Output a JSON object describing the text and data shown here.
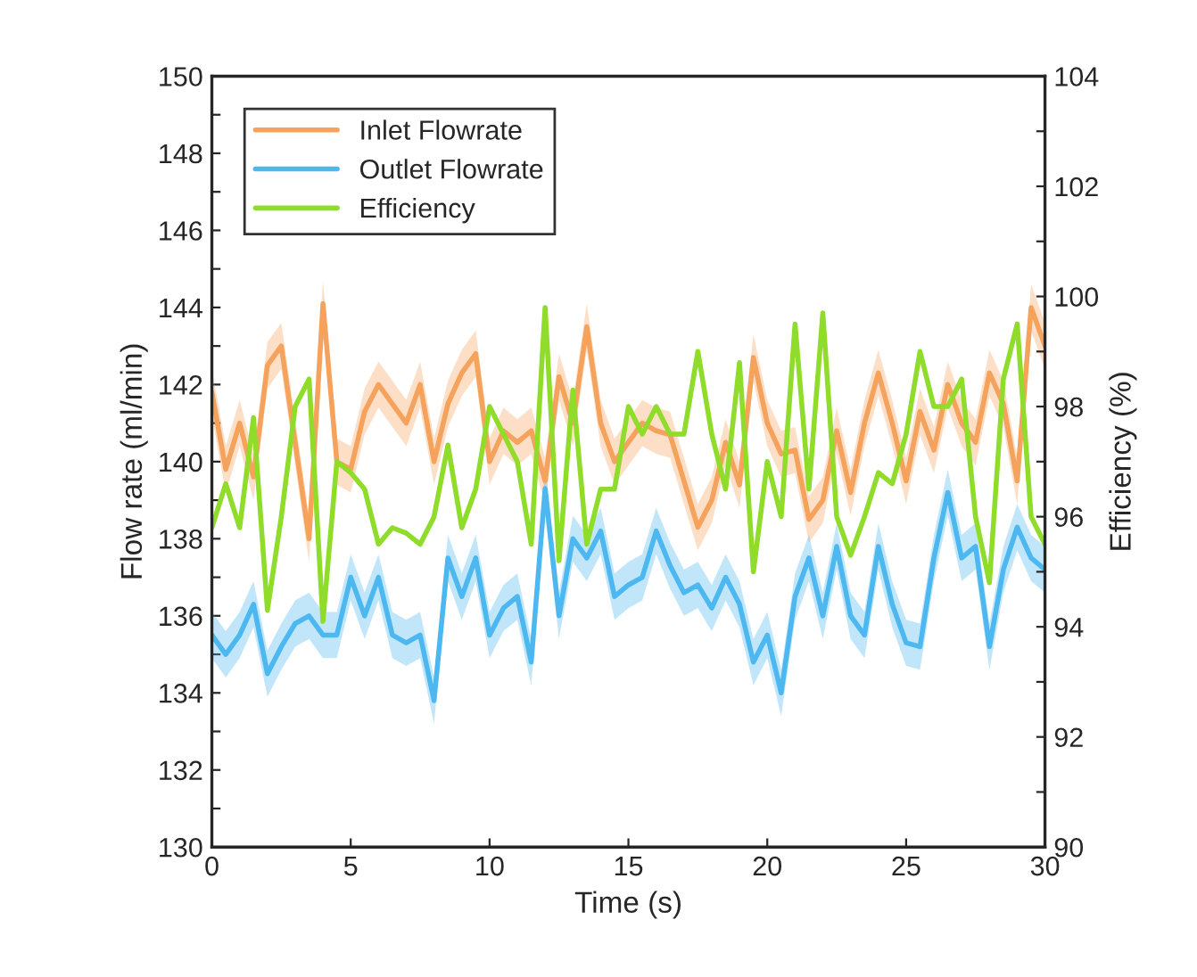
{
  "chart_data": {
    "type": "line",
    "xlabel": "Time (s)",
    "ylabel": "Flow rate (ml/min)",
    "y2label": "Efficiency (%)",
    "x": [
      0,
      0.5,
      1,
      1.5,
      2,
      2.5,
      3,
      3.5,
      4,
      4.5,
      5,
      5.5,
      6,
      6.5,
      7,
      7.5,
      8,
      8.5,
      9,
      9.5,
      10,
      10.5,
      11,
      11.5,
      12,
      12.5,
      13,
      13.5,
      14,
      14.5,
      15,
      15.5,
      16,
      16.5,
      17,
      17.5,
      18,
      18.5,
      19,
      19.5,
      20,
      20.5,
      21,
      21.5,
      22,
      22.5,
      23,
      23.5,
      24,
      24.5,
      25,
      25.5,
      26,
      26.5,
      27,
      27.5,
      28,
      28.5,
      29,
      29.5,
      30
    ],
    "series": [
      {
        "name": "Inlet Flowrate",
        "color": "#f5a25d",
        "values": [
          141.8,
          139.8,
          141,
          139.6,
          142.5,
          143,
          140.5,
          138,
          144.1,
          140,
          139.8,
          141.3,
          142,
          141.5,
          141,
          142,
          140,
          141.5,
          142.3,
          142.8,
          140,
          140.8,
          140.5,
          140.8,
          139.5,
          142.2,
          141,
          143.5,
          141,
          140,
          140.5,
          141,
          140.8,
          140.7,
          139.5,
          138.3,
          139,
          140.5,
          139.4,
          142.7,
          141,
          140.2,
          140.3,
          138.5,
          139,
          140.8,
          139.2,
          141,
          142.3,
          141,
          139.5,
          141.3,
          140.3,
          142,
          141,
          140.5,
          142.3,
          141.5,
          139.5,
          144,
          143
        ],
        "lower": [
          141.2,
          139.2,
          140.4,
          139,
          141.9,
          142.4,
          139.9,
          137.4,
          143.5,
          139.4,
          139.2,
          140.7,
          141.4,
          140.9,
          140.4,
          141.4,
          139.4,
          140.9,
          141.7,
          142.2,
          139.4,
          140.2,
          139.9,
          140.2,
          138.9,
          141.6,
          140.4,
          142.9,
          140.4,
          139.4,
          139.9,
          140.4,
          140.2,
          140.1,
          138.9,
          137.7,
          138.4,
          139.9,
          138.8,
          142.1,
          140.4,
          139.6,
          139.7,
          137.9,
          138.4,
          140.2,
          138.6,
          140.4,
          141.7,
          140.4,
          138.9,
          140.7,
          139.7,
          141.4,
          140.4,
          139.9,
          141.7,
          140.9,
          138.9,
          143.4,
          142.4
        ],
        "upper": [
          142.4,
          140.4,
          141.6,
          140.2,
          143.1,
          143.6,
          141.1,
          138.6,
          144.7,
          140.6,
          140.4,
          141.9,
          142.6,
          142.1,
          141.6,
          142.6,
          140.6,
          142.1,
          142.9,
          143.4,
          140.6,
          141.4,
          141.1,
          141.4,
          140.1,
          142.8,
          141.6,
          144.1,
          141.6,
          140.6,
          141.1,
          141.6,
          141.4,
          141.3,
          140.1,
          138.9,
          139.6,
          141.1,
          140,
          143.3,
          141.6,
          140.8,
          140.9,
          139.1,
          139.6,
          141.4,
          139.8,
          141.6,
          142.9,
          141.6,
          140.1,
          141.9,
          140.9,
          142.6,
          141.6,
          141.1,
          142.9,
          142.1,
          140.1,
          144.6,
          143.6
        ]
      },
      {
        "name": "Outlet Flowrate",
        "color": "#4db8f0",
        "values": [
          135.5,
          135,
          135.5,
          136.3,
          134.5,
          135.2,
          135.8,
          136,
          135.5,
          135.5,
          137,
          136,
          137,
          135.5,
          135.3,
          135.5,
          133.8,
          137.5,
          136.5,
          137.5,
          135.5,
          136.2,
          136.5,
          134.8,
          139.3,
          136,
          138,
          137.5,
          138.2,
          136.5,
          136.8,
          137,
          138.2,
          137.3,
          136.6,
          136.8,
          136.2,
          137,
          136.3,
          134.8,
          135.5,
          134,
          136.5,
          137.5,
          136,
          137.8,
          136,
          135.5,
          137.8,
          136.3,
          135.3,
          135.2,
          137.5,
          139.2,
          137.5,
          137.8,
          135.2,
          137.2,
          138.3,
          137.5,
          137.2
        ],
        "lower": [
          134.9,
          134.4,
          134.9,
          135.7,
          133.9,
          134.6,
          135.2,
          135.4,
          134.9,
          134.9,
          136.4,
          135.4,
          136.4,
          134.9,
          134.7,
          134.9,
          133.2,
          136.9,
          135.9,
          136.9,
          134.9,
          135.6,
          135.9,
          134.2,
          138.7,
          135.4,
          137.4,
          136.9,
          137.6,
          135.9,
          136.2,
          136.4,
          137.6,
          136.7,
          136,
          136.2,
          135.6,
          136.4,
          135.7,
          134.2,
          134.9,
          133.4,
          135.9,
          136.9,
          135.4,
          137.2,
          135.4,
          134.9,
          137.2,
          135.7,
          134.7,
          134.6,
          136.9,
          138.6,
          136.9,
          137.2,
          134.6,
          136.6,
          137.7,
          136.9,
          136.6
        ],
        "upper": [
          136.1,
          135.6,
          136.1,
          136.9,
          135.1,
          135.8,
          136.4,
          136.6,
          136.1,
          136.1,
          137.6,
          136.6,
          137.6,
          136.1,
          135.9,
          136.1,
          134.4,
          138.1,
          137.1,
          138.1,
          136.1,
          136.8,
          137.1,
          135.4,
          139.9,
          136.6,
          138.6,
          138.1,
          138.8,
          137.1,
          137.4,
          137.6,
          138.8,
          137.9,
          137.2,
          137.4,
          136.8,
          137.6,
          136.9,
          135.4,
          136.1,
          134.6,
          137.1,
          138.1,
          136.6,
          138.4,
          136.6,
          136.1,
          138.4,
          136.9,
          135.9,
          135.8,
          138.1,
          139.8,
          138.1,
          138.4,
          135.8,
          137.8,
          138.9,
          138.1,
          137.8
        ]
      },
      {
        "name": "Efficiency",
        "color": "#8fdc2a",
        "axis": "y2",
        "values": [
          95.8,
          96.6,
          95.8,
          97.8,
          94.3,
          96,
          98,
          98.5,
          94.1,
          97,
          96.8,
          96.5,
          95.5,
          95.8,
          95.7,
          95.5,
          96,
          97.3,
          95.8,
          96.5,
          98,
          97.5,
          97,
          95.5,
          99.8,
          95.2,
          98.3,
          95.5,
          96.5,
          96.5,
          98,
          97.5,
          98,
          97.5,
          97.5,
          99,
          97.5,
          96.5,
          98.8,
          95,
          97,
          96,
          99.5,
          96.5,
          99.7,
          96,
          95.3,
          96,
          96.8,
          96.6,
          97.5,
          99,
          98,
          98,
          98.5,
          96,
          94.8,
          98.5,
          99.5,
          96,
          95.5
        ]
      }
    ],
    "xlim": [
      0,
      30
    ],
    "xticks": [
      0,
      5,
      10,
      15,
      20,
      25,
      30
    ],
    "ylim": [
      130,
      150
    ],
    "yticks": [
      130,
      {
        "value": 131,
        "label": null
      },
      132,
      {
        "value": 133,
        "label": null
      },
      134,
      {
        "value": 135,
        "label": null
      },
      136,
      {
        "value": 137,
        "label": null
      },
      138,
      {
        "value": 139,
        "label": null
      },
      140,
      {
        "value": 141,
        "label": null
      },
      142,
      {
        "value": 143,
        "label": null
      },
      144,
      {
        "value": 145,
        "label": null
      },
      146,
      {
        "value": 147,
        "label": null
      },
      148,
      {
        "value": 149,
        "label": null
      },
      150
    ],
    "y2lim": [
      90,
      104
    ],
    "y2ticks": [
      90,
      {
        "value": 91,
        "label": null
      },
      92,
      {
        "value": 93,
        "label": null
      },
      94,
      {
        "value": 95,
        "label": null
      },
      96,
      {
        "value": 97,
        "label": null
      },
      98,
      {
        "value": 99,
        "label": null
      },
      100,
      {
        "value": 101,
        "label": null
      },
      102,
      {
        "value": 103,
        "label": null
      },
      104
    ],
    "grid": false,
    "legend": "top left",
    "marker": "none",
    "line_style": "solid"
  }
}
